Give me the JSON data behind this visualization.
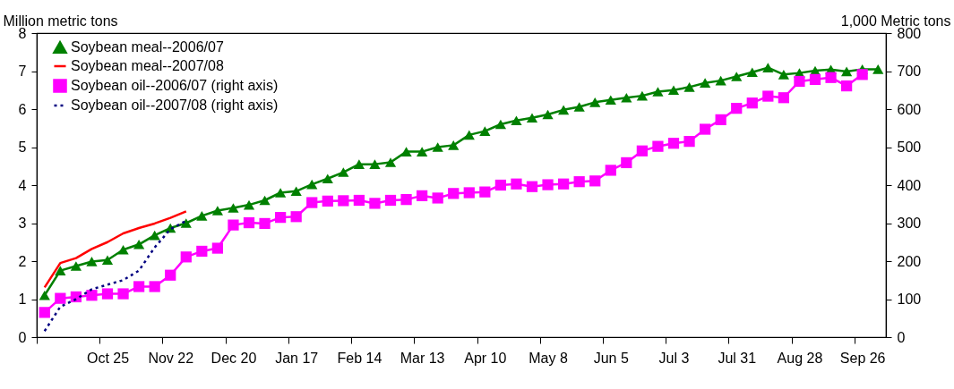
{
  "chart_data": {
    "type": "line",
    "xlabel": null,
    "ylabel": "Million metric tons",
    "y2label": "1,000 Metric tons",
    "categories": [
      null,
      null,
      null,
      null,
      "Oct 25",
      null,
      null,
      null,
      "Nov 22",
      null,
      null,
      null,
      "Dec 20",
      null,
      null,
      null,
      "Jan 17",
      null,
      null,
      null,
      "Feb 14",
      null,
      null,
      null,
      "Mar 13",
      null,
      null,
      null,
      "Apr 10",
      null,
      null,
      null,
      "May 8",
      null,
      null,
      null,
      "Jun 5",
      null,
      null,
      null,
      "Jul 3",
      null,
      null,
      null,
      "Jul 31",
      null,
      null,
      null,
      "Aug 28",
      null,
      null,
      null,
      "Sep 26",
      null
    ],
    "series": [
      {
        "name": "Soybean meal--2006/07",
        "color": "#008000",
        "marker": "triangle",
        "line_style": "solid",
        "values": [
          1.1,
          1.75,
          1.87,
          1.99,
          2.03,
          2.3,
          2.44,
          2.68,
          2.87,
          3.0,
          3.19,
          3.33,
          3.4,
          3.48,
          3.6,
          3.8,
          3.84,
          4.02,
          4.17,
          4.34,
          4.55,
          4.55,
          4.6,
          4.88,
          4.88,
          5.0,
          5.05,
          5.32,
          5.42,
          5.6,
          5.7,
          5.77,
          5.86,
          5.98,
          6.06,
          6.18,
          6.24,
          6.3,
          6.35,
          6.46,
          6.5,
          6.58,
          6.69,
          6.75,
          6.86,
          6.97,
          7.09,
          6.91,
          6.95,
          7.01,
          7.04,
          6.99,
          7.05,
          7.05
        ]
      },
      {
        "name": "Soybean meal--2007/08",
        "color": "#ff0000",
        "marker": "none",
        "line_style": "solid",
        "values": [
          1.31,
          1.95,
          2.08,
          2.32,
          2.5,
          2.73,
          2.87,
          2.99,
          3.14,
          3.31,
          null,
          null,
          null,
          null,
          null,
          null,
          null,
          null,
          null,
          null,
          null,
          null,
          null,
          null,
          null,
          null,
          null,
          null,
          null,
          null,
          null,
          null,
          null,
          null,
          null,
          null,
          null,
          null,
          null,
          null,
          null,
          null,
          null,
          null,
          null,
          null,
          null,
          null,
          null,
          null,
          null,
          null,
          null,
          null
        ]
      },
      {
        "name": "Soybean oil--2006/07 (right axis)",
        "color": "#ff00ff",
        "marker": "square",
        "line_style": "solid",
        "axis": "y2",
        "values": [
          65,
          102,
          106,
          110,
          114,
          114,
          133,
          133,
          163,
          211,
          226,
          234,
          295,
          301,
          299,
          315,
          317,
          354,
          358,
          359,
          360,
          352,
          360,
          362,
          372,
          366,
          378,
          380,
          382,
          400,
          403,
          396,
          401,
          403,
          409,
          411,
          439,
          459,
          490,
          502,
          510,
          515,
          547,
          572,
          602,
          616,
          634,
          630,
          673,
          678,
          683,
          661,
          691,
          null
        ]
      },
      {
        "name": "Soybean oil--2007/08 (right axis)",
        "color": "#000080",
        "marker": "none",
        "line_style": "dotted",
        "axis": "y2",
        "values": [
          16,
          80,
          100,
          126,
          138,
          150,
          175,
          236,
          284,
          306,
          null,
          null,
          null,
          null,
          null,
          null,
          null,
          null,
          null,
          null,
          null,
          null,
          null,
          null,
          null,
          null,
          null,
          null,
          null,
          null,
          null,
          null,
          null,
          null,
          null,
          null,
          null,
          null,
          null,
          null,
          null,
          null,
          null,
          null,
          null,
          null,
          null,
          null,
          null,
          null,
          null,
          null,
          null,
          null
        ]
      }
    ],
    "ylim": [
      0,
      8
    ],
    "yticks": [
      0,
      1,
      2,
      3,
      4,
      5,
      6,
      7,
      8
    ],
    "y2lim": [
      0,
      800
    ],
    "y2ticks": [
      0,
      100,
      200,
      300,
      400,
      500,
      600,
      700,
      800
    ],
    "grid": false,
    "legend": "top left"
  }
}
